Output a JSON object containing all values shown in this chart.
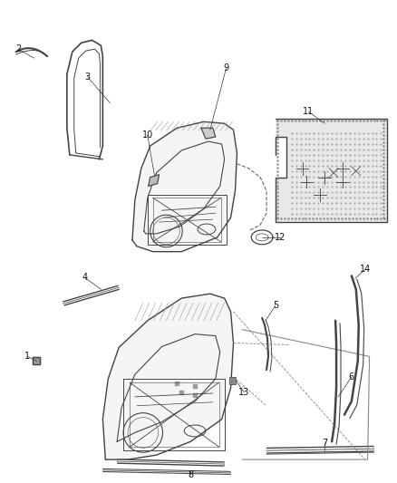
{
  "fig_width": 4.39,
  "fig_height": 5.33,
  "bg": "#ffffff",
  "lc": "#444444",
  "lc2": "#666666",
  "fs": 7.0
}
